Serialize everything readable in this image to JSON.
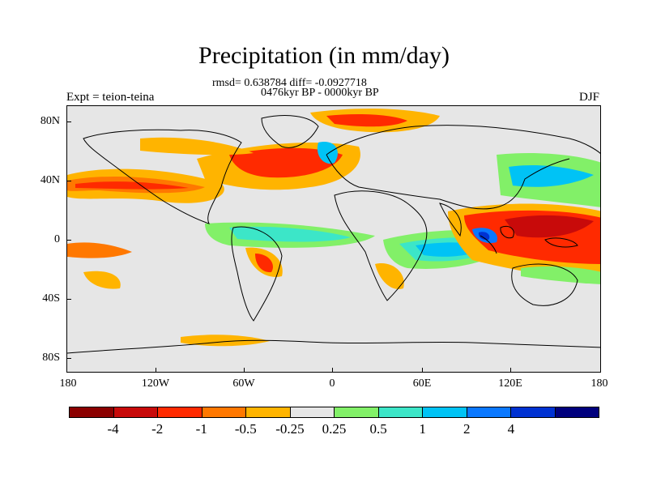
{
  "title": "Precipitation (in mm/day)",
  "stats": "rmsd= 0.638784 diff= -0.0927718",
  "period": "0476kyr BP - 0000kyr BP",
  "experiment": "Expt = teion-teina",
  "season": "DJF",
  "lat_labels": [
    "80N",
    "40N",
    "0",
    "40S",
    "80S"
  ],
  "lon_labels": [
    "180",
    "120W",
    "60W",
    "0",
    "60E",
    "120E",
    "180"
  ],
  "colorbar": {
    "colors": [
      "#8b0000",
      "#c80a0a",
      "#ff2a00",
      "#ff7800",
      "#ffb400",
      "#e6e6e6",
      "#82f068",
      "#3ce6c8",
      "#00c3f5",
      "#0a78ff",
      "#0032d2",
      "#00007d"
    ],
    "labels": [
      "-4",
      "-2",
      "-1",
      "-0.5",
      "-0.25",
      "0.25",
      "0.5",
      "1",
      "2",
      "4"
    ]
  },
  "legend_levels": [
    -4,
    -2,
    -1,
    -0.5,
    -0.25,
    0.25,
    0.5,
    1,
    2,
    4
  ]
}
